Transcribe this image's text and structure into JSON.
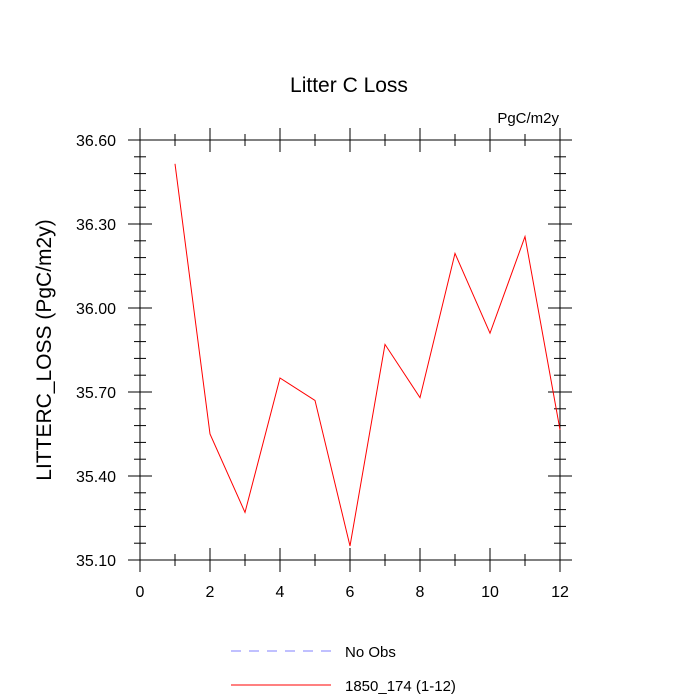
{
  "chart_data": {
    "type": "line",
    "title": "Litter C Loss",
    "units_label": "PgC/m2y",
    "ylabel": "LITTERC_LOSS  (PgC/m2y)",
    "xlabel": "",
    "xlim": [
      0,
      12
    ],
    "ylim": [
      35.1,
      36.6
    ],
    "x_ticks": [
      0,
      2,
      4,
      6,
      8,
      10,
      12
    ],
    "x_tick_labels": [
      "0",
      "2",
      "4",
      "6",
      "8",
      "10",
      "12"
    ],
    "y_ticks": [
      35.1,
      35.4,
      35.7,
      36.0,
      36.3,
      36.6
    ],
    "y_tick_labels": [
      "35.10",
      "35.40",
      "35.70",
      "36.00",
      "36.30",
      "36.60"
    ],
    "grid": false,
    "series": [
      {
        "name": "1850_174 (1-12)",
        "color": "#ff0000",
        "dash": "solid",
        "x": [
          1,
          2,
          3,
          4,
          5,
          6,
          7,
          8,
          9,
          10,
          11,
          12
        ],
        "y": [
          36.515,
          35.55,
          35.27,
          35.75,
          35.67,
          35.15,
          35.87,
          35.68,
          36.195,
          35.91,
          36.255,
          35.565
        ]
      }
    ],
    "legend": {
      "position": "bottom-center",
      "entries": [
        {
          "label": "No Obs",
          "color": "#8080ff",
          "dash": "dashed"
        },
        {
          "label": "1850_174 (1-12)",
          "color": "#ff0000",
          "dash": "solid"
        }
      ]
    }
  }
}
